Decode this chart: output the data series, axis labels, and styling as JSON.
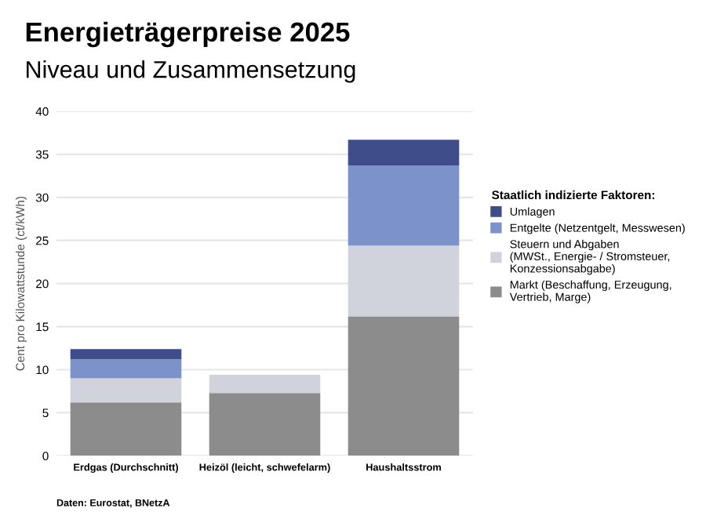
{
  "chart_data": {
    "type": "bar",
    "stacked": true,
    "title": "Energieträgerpreise 2025",
    "subtitle": "Niveau und Zusammensetzung",
    "ylabel": "Cent pro Kilowattstunde (ct/kWh)",
    "categories": [
      "Erdgas (Durchschnitt)",
      "Heizöl (leicht, schwefelarm)",
      "Haushaltsstrom"
    ],
    "series": [
      {
        "name": "Markt (Beschaffung, Erzeugung,\nVertrieb, Marge)",
        "color": "#8c8c8c",
        "values": [
          6.2,
          7.3,
          16.2
        ]
      },
      {
        "name": "Steuern und Abgaben\n(MWSt., Energie- / Stromsteuer,\nKonzessionsabgabe)",
        "color": "#d0d3dc",
        "values": [
          2.8,
          2.1,
          8.2
        ]
      },
      {
        "name": "Entgelte (Netzentgelt, Messwesen)",
        "color": "#7b93c8",
        "values": [
          2.2,
          0,
          9.3
        ]
      },
      {
        "name": "Umlagen",
        "color": "#3f4d8a",
        "values": [
          1.2,
          0,
          3.0
        ]
      }
    ],
    "ylim": [
      0,
      40
    ],
    "yticks": [
      0,
      5,
      10,
      15,
      20,
      25,
      30,
      35,
      40
    ],
    "grid": "y",
    "legend": "right",
    "legend_title": "Staatlich indizierte Faktoren:",
    "annotations": [
      "Daten: Eurostat, BNetzA"
    ]
  }
}
